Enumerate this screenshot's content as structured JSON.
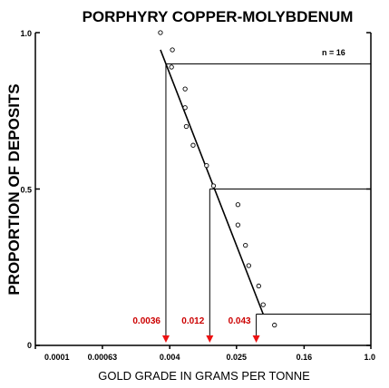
{
  "chart_data": {
    "type": "scatter",
    "title": "PORPHYRY COPPER-MOLYBDENUM",
    "xlabel": "GOLD GRADE IN GRAMS PER TONNE",
    "ylabel": "PROPORTION OF DEPOSITS",
    "x_scale": "log",
    "x_ticks": [
      0.0001,
      0.00063,
      0.004,
      0.025,
      0.16,
      1.0
    ],
    "x_tick_labels": [
      "0.0001",
      "0.00063",
      "0.004",
      "0.025",
      "0.16",
      "1.0"
    ],
    "y_ticks": [
      0,
      0.5,
      1.0
    ],
    "y_tick_labels": [
      "0",
      "0.5",
      "1.0"
    ],
    "xlim": [
      0.0001,
      1.0
    ],
    "ylim": [
      0,
      1.0
    ],
    "n_label": "n = 16",
    "points": [
      {
        "x": 0.0031,
        "y": 1.0
      },
      {
        "x": 0.0043,
        "y": 0.945
      },
      {
        "x": 0.0042,
        "y": 0.89
      },
      {
        "x": 0.0061,
        "y": 0.82
      },
      {
        "x": 0.0061,
        "y": 0.76
      },
      {
        "x": 0.0063,
        "y": 0.7
      },
      {
        "x": 0.0076,
        "y": 0.64
      },
      {
        "x": 0.011,
        "y": 0.575
      },
      {
        "x": 0.0133,
        "y": 0.51
      },
      {
        "x": 0.026,
        "y": 0.45
      },
      {
        "x": 0.026,
        "y": 0.385
      },
      {
        "x": 0.032,
        "y": 0.32
      },
      {
        "x": 0.035,
        "y": 0.255
      },
      {
        "x": 0.046,
        "y": 0.19
      },
      {
        "x": 0.052,
        "y": 0.13
      },
      {
        "x": 0.071,
        "y": 0.065
      }
    ],
    "fit_line": [
      {
        "x": 0.0031,
        "y": 0.945
      },
      {
        "x": 0.052,
        "y": 0.1
      }
    ],
    "percentiles": [
      {
        "label": "0.0036",
        "x": 0.0036,
        "y": 0.9
      },
      {
        "label": "0.012",
        "x": 0.012,
        "y": 0.5
      },
      {
        "label": "0.043",
        "x": 0.043,
        "y": 0.1
      }
    ],
    "grid": false,
    "colors": {
      "axes": "#000000",
      "annotation": "#cc0000",
      "arrow": "#ee1111"
    }
  }
}
